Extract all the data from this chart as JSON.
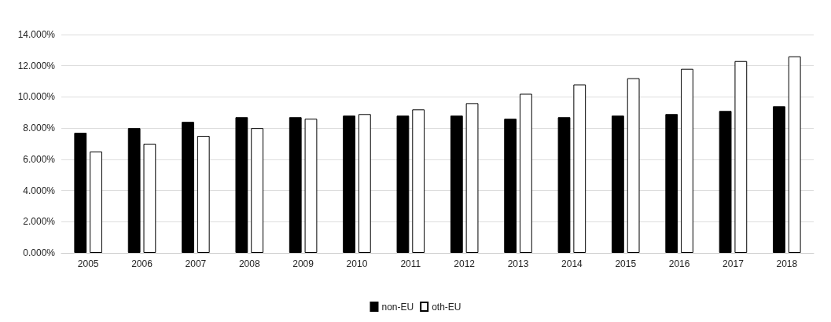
{
  "chart_data": {
    "type": "bar",
    "categories": [
      "2005",
      "2006",
      "2007",
      "2008",
      "2009",
      "2010",
      "2011",
      "2012",
      "2013",
      "2014",
      "2015",
      "2016",
      "2017",
      "2018"
    ],
    "series": [
      {
        "name": "non-EU",
        "color": "#000000",
        "values": [
          7.7,
          8.0,
          8.4,
          8.7,
          8.7,
          8.8,
          8.8,
          8.8,
          8.6,
          8.7,
          8.8,
          8.9,
          9.1,
          9.4
        ]
      },
      {
        "name": "oth-EU",
        "color": "#ffffff",
        "values": [
          6.5,
          7.0,
          7.5,
          8.0,
          8.6,
          8.9,
          9.2,
          9.6,
          10.2,
          10.8,
          11.2,
          11.8,
          12.3,
          12.6
        ]
      }
    ],
    "ylim": [
      0,
      14
    ],
    "yticks": [
      {
        "value": 0,
        "label": "0.000%"
      },
      {
        "value": 2,
        "label": "2.000%"
      },
      {
        "value": 4,
        "label": "4.000%"
      },
      {
        "value": 6,
        "label": "6.000%"
      },
      {
        "value": 8,
        "label": "8.000%"
      },
      {
        "value": 10,
        "label": "10.000%"
      },
      {
        "value": 12,
        "label": "12.000%"
      },
      {
        "value": 14,
        "label": "14.000%"
      }
    ],
    "grid": "y",
    "legend": "bottom"
  }
}
